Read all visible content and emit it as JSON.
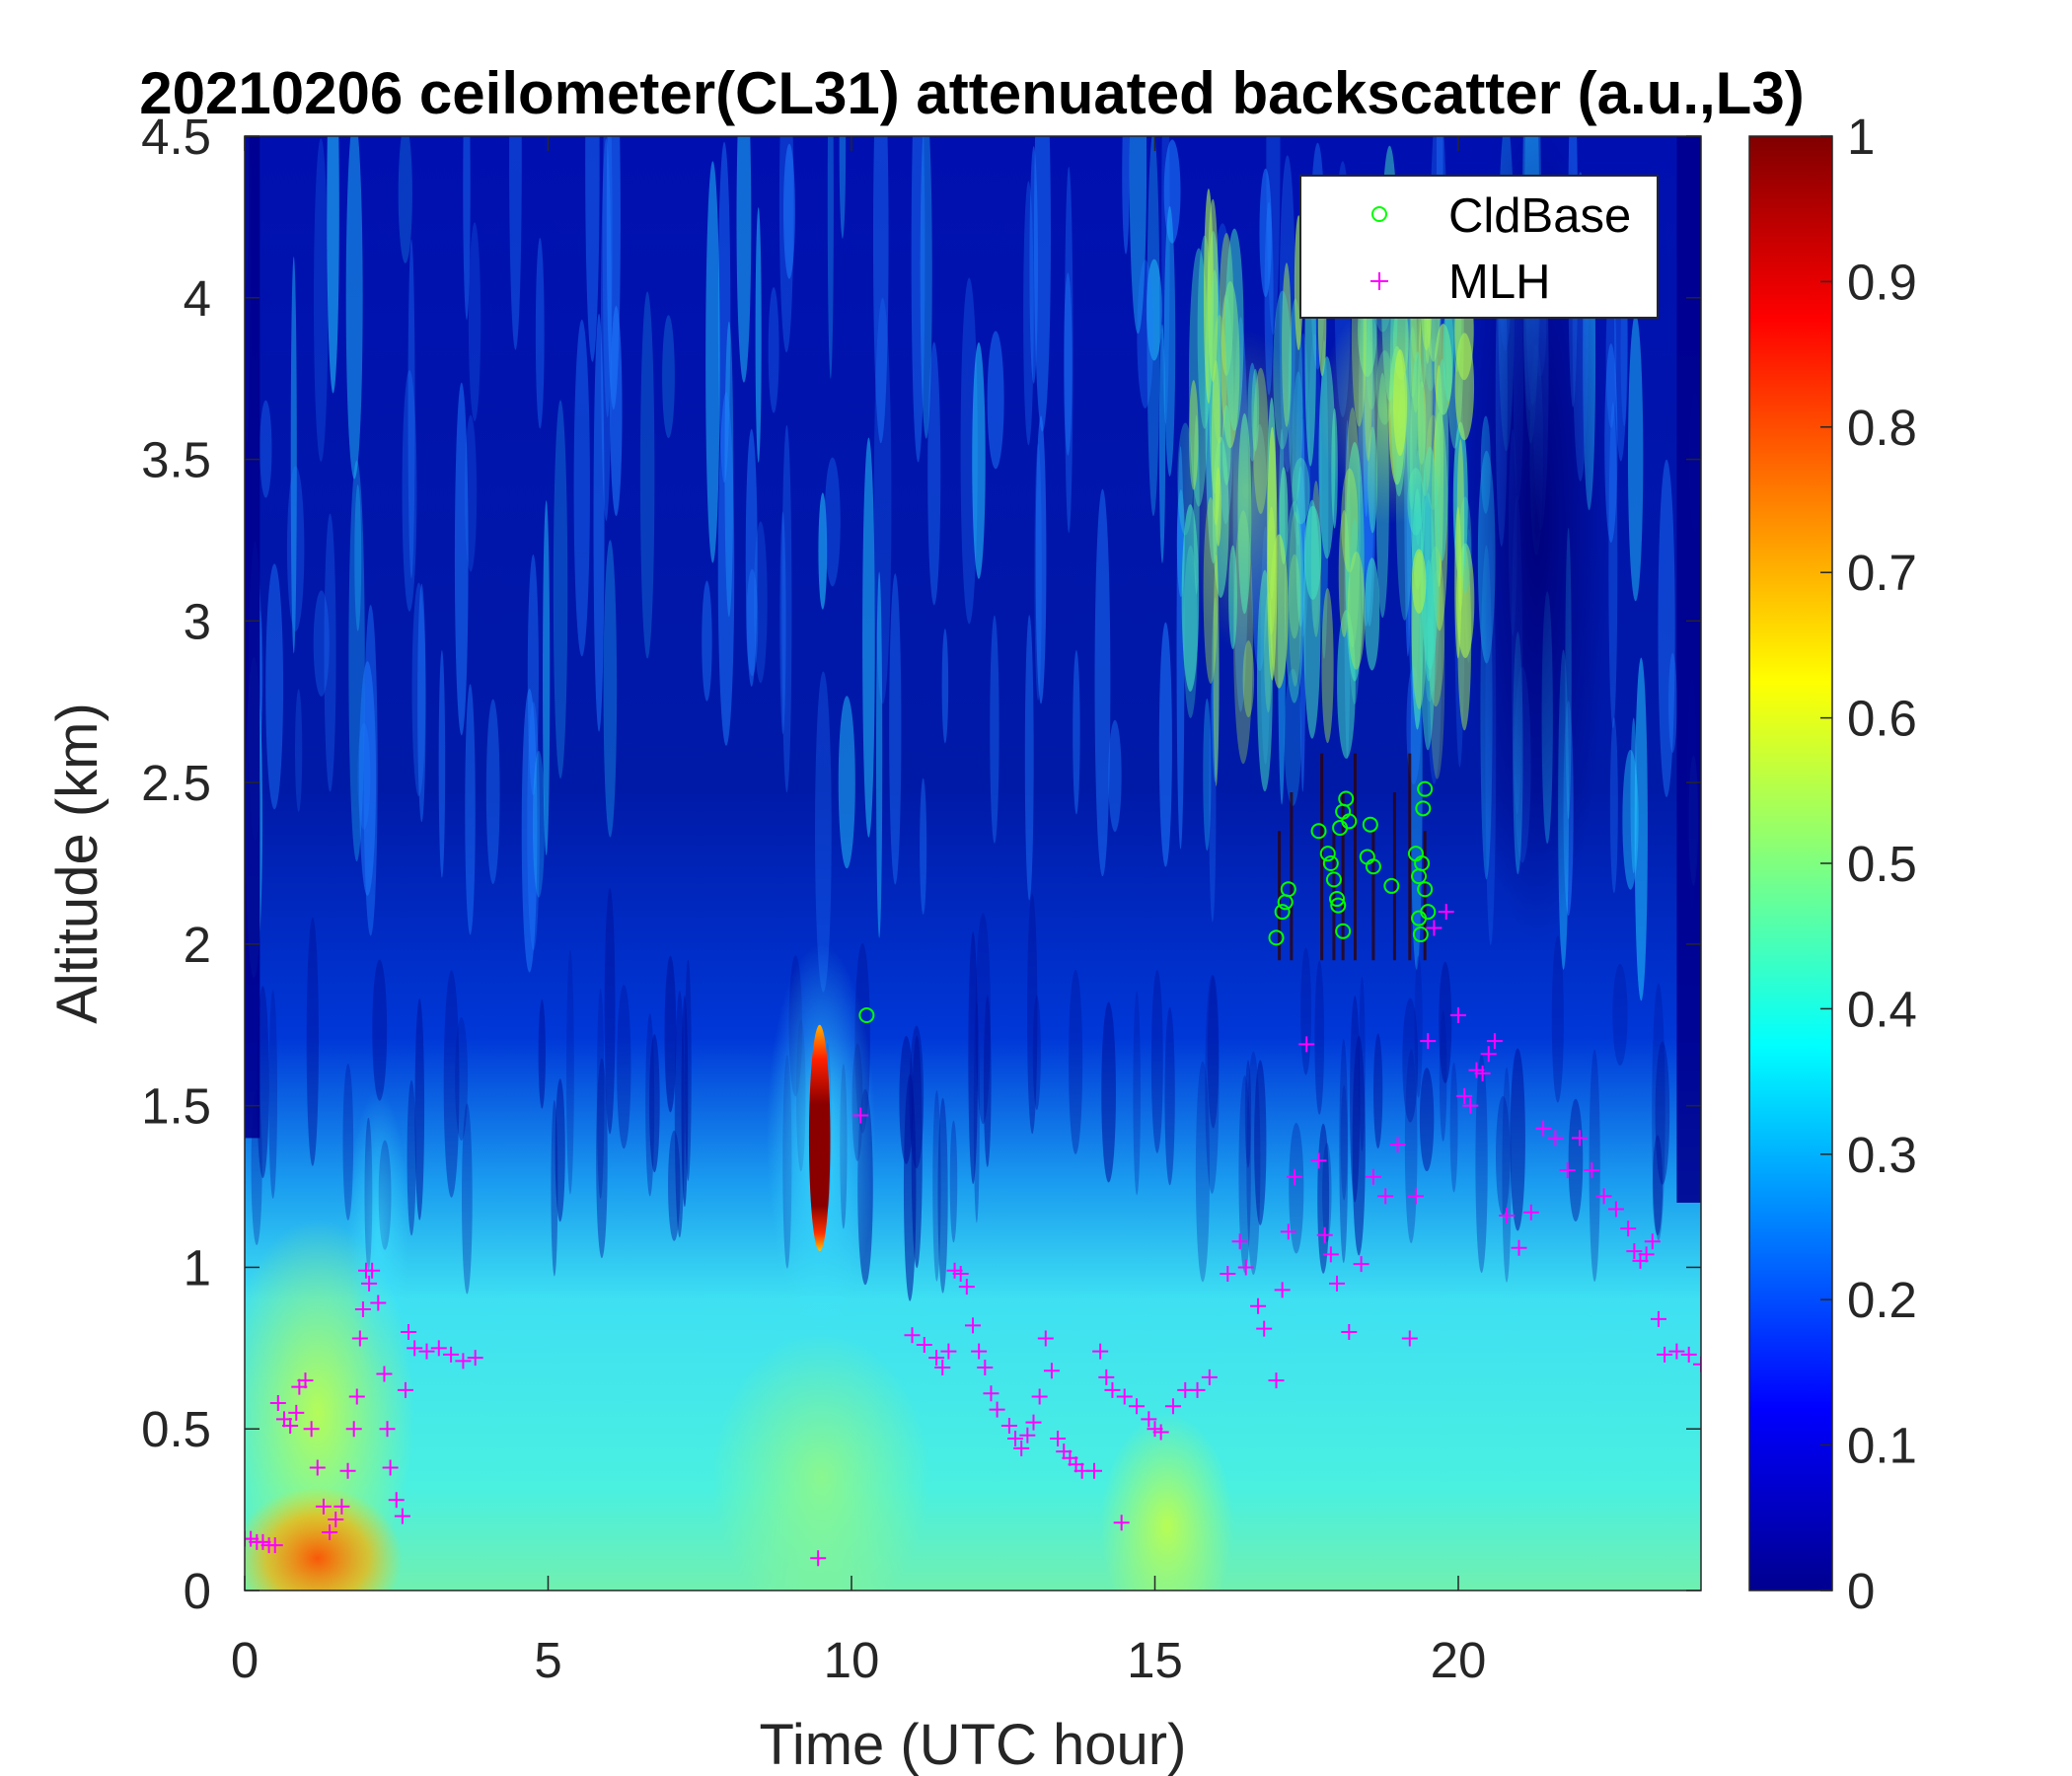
{
  "chart_data": {
    "type": "heatmap",
    "title": "20210206 ceilometer(CL31) attenuated backscatter (a.u.,L3)",
    "xlabel": "Time (UTC hour)",
    "ylabel": "Altitude (km)",
    "xlim": [
      0,
      24
    ],
    "ylim": [
      0,
      4.5
    ],
    "x_ticks": [
      "0",
      "5",
      "10",
      "15",
      "20"
    ],
    "y_ticks": [
      "0",
      "0.5",
      "1",
      "1.5",
      "2",
      "2.5",
      "3",
      "3.5",
      "4",
      "4.5"
    ],
    "colorbar": {
      "colormap": "jet",
      "range": [
        0,
        1
      ],
      "ticks": [
        "0",
        "0.1",
        "0.2",
        "0.3",
        "0.4",
        "0.5",
        "0.6",
        "0.7",
        "0.8",
        "0.9",
        "1"
      ]
    },
    "features": [
      {
        "description": "strong near-surface backscatter",
        "t_start": 0,
        "t_end": 2.4,
        "alt_bottom": 0,
        "alt_top": 0.35,
        "value": 0.75
      },
      {
        "description": "aerosol layer",
        "t_start": 0,
        "t_end": 24,
        "alt_bottom": 0,
        "alt_top": 1.0,
        "value": 0.35
      },
      {
        "description": "dense cloud",
        "t_start": 9.3,
        "t_end": 9.65,
        "alt_bottom": 1.05,
        "alt_top": 1.75,
        "value": 1.0
      },
      {
        "description": "elevated aerosol layer",
        "t_start": 15.5,
        "t_end": 20.2,
        "alt_bottom": 2.6,
        "alt_top": 4.3,
        "value": 0.5
      }
    ],
    "series": [
      {
        "name": "CldBase",
        "marker": "circle",
        "color": "#00ff00",
        "points": [
          [
            10.25,
            1.78
          ],
          [
            17.0,
            2.02
          ],
          [
            17.1,
            2.1
          ],
          [
            17.15,
            2.13
          ],
          [
            17.2,
            2.17
          ],
          [
            17.7,
            2.35
          ],
          [
            17.85,
            2.28
          ],
          [
            17.9,
            2.25
          ],
          [
            17.95,
            2.2
          ],
          [
            18.0,
            2.14
          ],
          [
            18.02,
            2.12
          ],
          [
            18.05,
            2.36
          ],
          [
            18.1,
            2.41
          ],
          [
            18.15,
            2.45
          ],
          [
            18.1,
            2.04
          ],
          [
            18.2,
            2.38
          ],
          [
            18.5,
            2.27
          ],
          [
            18.55,
            2.37
          ],
          [
            18.6,
            2.24
          ],
          [
            18.9,
            2.18
          ],
          [
            19.3,
            2.28
          ],
          [
            19.35,
            2.21
          ],
          [
            19.35,
            2.08
          ],
          [
            19.4,
            2.25
          ],
          [
            19.45,
            2.17
          ],
          [
            19.38,
            2.03
          ],
          [
            19.42,
            2.42
          ],
          [
            19.45,
            2.48
          ],
          [
            19.5,
            2.1
          ]
        ]
      },
      {
        "name": "MLH",
        "marker": "plus",
        "color": "#ff00ff",
        "points": [
          [
            0.0,
            0.16
          ],
          [
            0.1,
            0.16
          ],
          [
            0.2,
            0.15
          ],
          [
            0.3,
            0.15
          ],
          [
            0.4,
            0.14
          ],
          [
            0.5,
            0.14
          ],
          [
            0.55,
            0.58
          ],
          [
            0.65,
            0.53
          ],
          [
            0.75,
            0.51
          ],
          [
            0.85,
            0.55
          ],
          [
            0.9,
            0.63
          ],
          [
            1.0,
            0.65
          ],
          [
            1.1,
            0.5
          ],
          [
            1.2,
            0.38
          ],
          [
            1.3,
            0.26
          ],
          [
            1.4,
            0.18
          ],
          [
            1.5,
            0.22
          ],
          [
            1.6,
            0.26
          ],
          [
            1.7,
            0.37
          ],
          [
            1.8,
            0.5
          ],
          [
            1.85,
            0.6
          ],
          [
            1.9,
            0.78
          ],
          [
            1.95,
            0.87
          ],
          [
            2.0,
            0.99
          ],
          [
            2.05,
            0.95
          ],
          [
            2.1,
            0.99
          ],
          [
            2.2,
            0.89
          ],
          [
            2.3,
            0.67
          ],
          [
            2.35,
            0.5
          ],
          [
            2.4,
            0.38
          ],
          [
            2.5,
            0.28
          ],
          [
            2.6,
            0.23
          ],
          [
            2.65,
            0.62
          ],
          [
            2.7,
            0.8
          ],
          [
            2.8,
            0.75
          ],
          [
            3.0,
            0.74
          ],
          [
            3.2,
            0.75
          ],
          [
            3.4,
            0.73
          ],
          [
            3.6,
            0.71
          ],
          [
            3.8,
            0.72
          ],
          [
            9.45,
            0.1
          ],
          [
            10.15,
            1.47
          ],
          [
            11.0,
            0.79
          ],
          [
            11.2,
            0.76
          ],
          [
            11.4,
            0.72
          ],
          [
            11.5,
            0.69
          ],
          [
            11.6,
            0.74
          ],
          [
            11.7,
            0.99
          ],
          [
            11.8,
            0.98
          ],
          [
            11.9,
            0.94
          ],
          [
            12.0,
            0.82
          ],
          [
            12.1,
            0.74
          ],
          [
            12.2,
            0.69
          ],
          [
            12.3,
            0.61
          ],
          [
            12.4,
            0.56
          ],
          [
            12.6,
            0.51
          ],
          [
            12.7,
            0.47
          ],
          [
            12.8,
            0.44
          ],
          [
            12.9,
            0.48
          ],
          [
            13.0,
            0.52
          ],
          [
            13.1,
            0.6
          ],
          [
            13.2,
            0.78
          ],
          [
            13.3,
            0.68
          ],
          [
            13.4,
            0.47
          ],
          [
            13.5,
            0.43
          ],
          [
            13.6,
            0.41
          ],
          [
            13.7,
            0.39
          ],
          [
            13.8,
            0.37
          ],
          [
            14.0,
            0.37
          ],
          [
            14.1,
            0.74
          ],
          [
            14.2,
            0.66
          ],
          [
            14.3,
            0.62
          ],
          [
            14.45,
            0.21
          ],
          [
            14.5,
            0.6
          ],
          [
            14.7,
            0.57
          ],
          [
            14.9,
            0.53
          ],
          [
            15.0,
            0.5
          ],
          [
            15.1,
            0.49
          ],
          [
            15.3,
            0.57
          ],
          [
            15.5,
            0.62
          ],
          [
            15.7,
            0.62
          ],
          [
            15.9,
            0.66
          ],
          [
            16.2,
            0.98
          ],
          [
            16.4,
            1.08
          ],
          [
            16.5,
            1.0
          ],
          [
            16.7,
            0.88
          ],
          [
            16.8,
            0.81
          ],
          [
            17.0,
            0.65
          ],
          [
            17.1,
            0.93
          ],
          [
            17.2,
            1.11
          ],
          [
            17.3,
            1.28
          ],
          [
            17.5,
            1.69
          ],
          [
            17.7,
            1.33
          ],
          [
            17.8,
            1.1
          ],
          [
            17.9,
            1.04
          ],
          [
            18.0,
            0.95
          ],
          [
            18.2,
            0.8
          ],
          [
            18.4,
            1.01
          ],
          [
            18.6,
            1.28
          ],
          [
            18.8,
            1.22
          ],
          [
            19.0,
            1.38
          ],
          [
            19.2,
            0.78
          ],
          [
            19.3,
            1.22
          ],
          [
            19.5,
            1.7
          ],
          [
            19.6,
            2.05
          ],
          [
            19.8,
            2.1
          ],
          [
            20.0,
            1.78
          ],
          [
            20.1,
            1.53
          ],
          [
            20.2,
            1.5
          ],
          [
            20.3,
            1.61
          ],
          [
            20.4,
            1.6
          ],
          [
            20.5,
            1.66
          ],
          [
            20.6,
            1.7
          ],
          [
            20.8,
            1.16
          ],
          [
            21.0,
            1.06
          ],
          [
            21.2,
            1.17
          ],
          [
            21.4,
            1.43
          ],
          [
            21.6,
            1.4
          ],
          [
            21.8,
            1.3
          ],
          [
            22.0,
            1.4
          ],
          [
            22.2,
            1.3
          ],
          [
            22.4,
            1.22
          ],
          [
            22.6,
            1.18
          ],
          [
            22.8,
            1.12
          ],
          [
            22.9,
            1.05
          ],
          [
            23.0,
            1.02
          ],
          [
            23.1,
            1.04
          ],
          [
            23.2,
            1.08
          ],
          [
            23.3,
            0.84
          ],
          [
            23.4,
            0.73
          ],
          [
            23.6,
            0.74
          ],
          [
            23.8,
            0.73
          ],
          [
            24.0,
            0.7
          ]
        ]
      }
    ],
    "legend": {
      "position": "top-right",
      "entries": [
        "CldBase",
        "MLH"
      ]
    }
  }
}
